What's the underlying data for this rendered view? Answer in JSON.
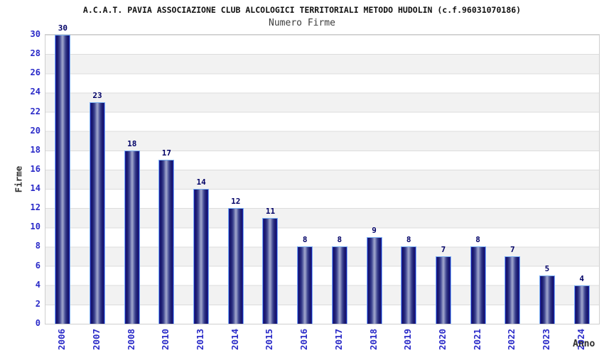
{
  "header": {
    "title": "A.C.A.T. PAVIA ASSOCIAZIONE CLUB ALCOLOGICI TERRITORIALI METODO HUDOLIN (c.f.96031070186)",
    "subtitle": "Numero Firme"
  },
  "chart_data": {
    "type": "bar",
    "title": "Numero Firme",
    "categories": [
      "2006",
      "2007",
      "2008",
      "2010",
      "2013",
      "2014",
      "2015",
      "2016",
      "2017",
      "2018",
      "2019",
      "2020",
      "2021",
      "2022",
      "2023",
      "2024"
    ],
    "values": [
      30,
      23,
      18,
      17,
      14,
      12,
      11,
      8,
      8,
      9,
      8,
      7,
      8,
      7,
      5,
      4
    ],
    "xlabel": "Anno",
    "ylabel": "Firme",
    "ylim": [
      0,
      30
    ],
    "ytick_step": 2,
    "yticks": [
      0,
      2,
      4,
      6,
      8,
      10,
      12,
      14,
      16,
      18,
      20,
      22,
      24,
      26,
      28,
      30
    ],
    "legend": null,
    "grid": "horizontal bands every 2 units, alternating white and light gray",
    "bar_labels_shown": true,
    "colors": {
      "bar_dark": "#16166a",
      "bar_mid": "#9aa1c9",
      "bar_border": "#79aef0",
      "value_label": "#000066",
      "tick_label": "#2a2ac8",
      "band_gray": "#f2f2f2",
      "gridline": "#dcdcdc",
      "title_text": "#111111",
      "axis_title_text": "#2e2e2e"
    }
  }
}
